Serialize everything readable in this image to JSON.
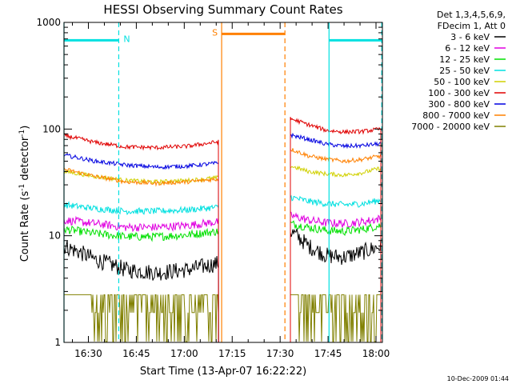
{
  "chart_data": {
    "type": "line",
    "title": "HESSI Observing Summary Count Rates",
    "xlabel": "Start Time (13-Apr-07 16:22:22)",
    "ylabel_main": "Count Rate (s",
    "ylabel_sup1": "-1",
    "ylabel_mid": " detector",
    "ylabel_sup2": "-1",
    "ylabel_end": ")",
    "y_scale": "log",
    "ylim": [
      1,
      1000
    ],
    "xlim_minutes": [
      22.37,
      122.0
    ],
    "x_ticks": [
      {
        "label": "16:30",
        "minute": 30
      },
      {
        "label": "16:45",
        "minute": 45
      },
      {
        "label": "17:00",
        "minute": 60
      },
      {
        "label": "17:15",
        "minute": 75
      },
      {
        "label": "17:30",
        "minute": 90
      },
      {
        "label": "17:45",
        "minute": 105
      },
      {
        "label": "18:00",
        "minute": 120
      }
    ],
    "y_ticks": [
      {
        "label": "1",
        "value": 1
      },
      {
        "label": "10",
        "value": 10
      },
      {
        "label": "100",
        "value": 100
      },
      {
        "label": "1000",
        "value": 1000
      }
    ],
    "legend_header": [
      "Det 1,3,4,5,6,9,",
      "FDecim 1, Att 0"
    ],
    "legend_placement": "right",
    "footer_date": "10-Dec-2009 01:44",
    "segments": [
      [
        22.37,
        70.7
      ],
      [
        93.2,
        121.5
      ]
    ],
    "series": [
      {
        "name": "3 - 6 keV",
        "color": "#000000",
        "seg1": [
          8,
          6,
          4.8,
          4.5,
          4.8,
          5.5
        ],
        "seg2": [
          11,
          8,
          6.5,
          6.3,
          7,
          8
        ]
      },
      {
        "name": "6 - 12 keV",
        "color": "#e000e0",
        "seg1": [
          14,
          13,
          12,
          12,
          12.5,
          13.5
        ],
        "seg2": [
          15.5,
          14,
          13.2,
          13,
          13.5,
          14.5
        ]
      },
      {
        "name": "12 - 25 keV",
        "color": "#00e000",
        "seg1": [
          11.5,
          10.5,
          9.8,
          9.8,
          10.2,
          11
        ],
        "seg2": [
          13,
          12,
          11.2,
          11,
          11.5,
          12.5
        ]
      },
      {
        "name": "25 - 50 keV",
        "color": "#00e0e0",
        "seg1": [
          19.5,
          18,
          17,
          17,
          17.5,
          18.5
        ],
        "seg2": [
          23,
          21,
          20,
          19.5,
          20,
          21.5
        ]
      },
      {
        "name": "50 - 100 keV",
        "color": "#d0d000",
        "seg1": [
          40,
          36,
          33,
          32,
          33,
          35
        ],
        "seg2": [
          45,
          40,
          38,
          37,
          39,
          43
        ]
      },
      {
        "name": "100 - 300 keV",
        "color": "#e00000",
        "seg1": [
          87,
          75,
          68,
          67,
          69,
          76
        ],
        "seg2": [
          125,
          110,
          97,
          94,
          95,
          100
        ]
      },
      {
        "name": "300 - 800 keV",
        "color": "#0000e0",
        "seg1": [
          57,
          50,
          46,
          44,
          45,
          48
        ],
        "seg2": [
          88,
          80,
          72,
          69,
          70,
          73
        ]
      },
      {
        "name": "800 - 7000 keV",
        "color": "#ff8000",
        "seg1": [
          42,
          36,
          32,
          31,
          32,
          34
        ],
        "seg2": [
          65,
          56,
          52,
          50,
          52,
          56
        ]
      },
      {
        "name": "7000 - 20000 keV",
        "color": "#808000",
        "seg1": [
          2.8,
          2.8,
          2.8,
          2.8,
          2.8,
          2.8
        ],
        "seg2": [
          2.8,
          2.8,
          2.8,
          2.8,
          2.8,
          2.8
        ]
      }
    ],
    "markers": [
      {
        "flag": "N",
        "color": "#00e0e0",
        "start": 22.37,
        "end": 39.5,
        "level": 680
      },
      {
        "flag": "S",
        "color": "#ff8000",
        "start": 71.7,
        "end": 91.5,
        "level": 780
      },
      {
        "flag": "",
        "color": "#00e0e0",
        "start": 105.3,
        "end": 121.8,
        "level": 680
      }
    ]
  }
}
